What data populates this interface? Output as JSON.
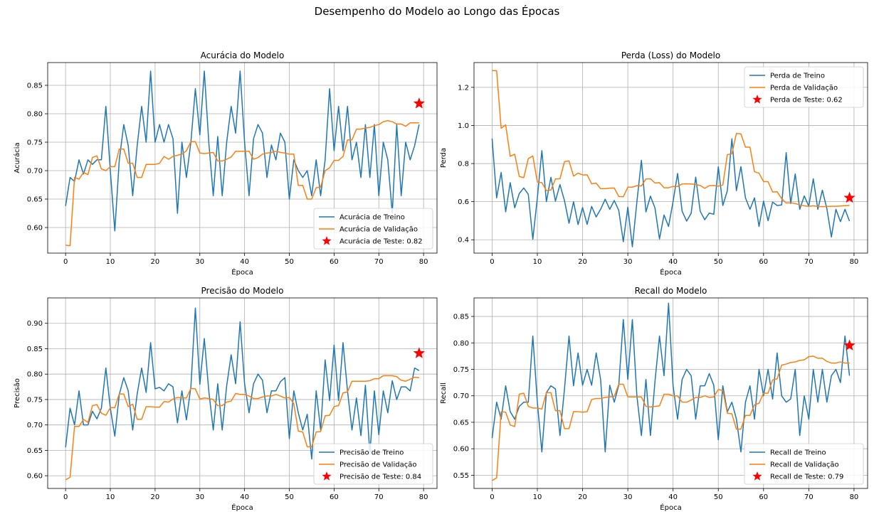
{
  "suptitle": "Desempenho do Modelo ao Longo das Épocas",
  "colors": {
    "train": "#1f77b4",
    "val": "#ff7f0e",
    "test": "#ff0000",
    "grid": "#b0b0b0"
  },
  "chart_data": [
    {
      "type": "line",
      "title": "Acurácia do Modelo",
      "xlabel": "Época",
      "ylabel": "Acurácia",
      "xlim": [
        -4,
        83
      ],
      "ylim": [
        0.555,
        0.89
      ],
      "xticks": [
        0,
        10,
        20,
        30,
        40,
        50,
        60,
        70,
        80
      ],
      "yticks": [
        0.6,
        0.65,
        0.7,
        0.75,
        0.8,
        0.85
      ],
      "tick_decimals": 2,
      "grid": true,
      "legend_position": "bottom-right",
      "series": [
        {
          "name": "Acurácia de Treino",
          "color": "#1f77b4",
          "values": [
            0.638,
            0.688,
            0.681,
            0.719,
            0.694,
            0.719,
            0.711,
            0.719,
            0.719,
            0.813,
            0.7,
            0.594,
            0.719,
            0.781,
            0.744,
            0.656,
            0.744,
            0.813,
            0.75,
            0.875,
            0.75,
            0.781,
            0.75,
            0.781,
            0.756,
            0.625,
            0.75,
            0.688,
            0.75,
            0.844,
            0.763,
            0.875,
            0.75,
            0.656,
            0.76,
            0.656,
            0.75,
            0.813,
            0.766,
            0.875,
            0.75,
            0.656,
            0.756,
            0.781,
            0.766,
            0.688,
            0.745,
            0.719,
            0.766,
            0.75,
            0.65,
            0.719,
            0.7,
            0.688,
            0.7,
            0.656,
            0.719,
            0.656,
            0.719,
            0.844,
            0.735,
            0.813,
            0.735,
            0.813,
            0.719,
            0.75,
            0.688,
            0.781,
            0.688,
            0.781,
            0.656,
            0.75,
            0.719,
            0.625,
            0.781,
            0.656,
            0.75,
            0.719,
            0.744,
            0.781
          ]
        },
        {
          "name": "Acurácia de Validação",
          "color": "#ff7f0e",
          "values": [
            0.569,
            0.568,
            0.688,
            0.685,
            0.697,
            0.693,
            0.723,
            0.726,
            0.703,
            0.7,
            0.707,
            0.707,
            0.738,
            0.738,
            0.713,
            0.713,
            0.688,
            0.688,
            0.711,
            0.711,
            0.711,
            0.713,
            0.725,
            0.72,
            0.725,
            0.727,
            0.729,
            0.735,
            0.751,
            0.751,
            0.731,
            0.73,
            0.731,
            0.732,
            0.717,
            0.717,
            0.72,
            0.724,
            0.734,
            0.734,
            0.734,
            0.734,
            0.72,
            0.723,
            0.729,
            0.731,
            0.732,
            0.734,
            0.732,
            0.731,
            0.729,
            0.729,
            0.674,
            0.674,
            0.65,
            0.65,
            0.67,
            0.671,
            0.7,
            0.705,
            0.718,
            0.718,
            0.725,
            0.754,
            0.754,
            0.773,
            0.773,
            0.775,
            0.776,
            0.779,
            0.781,
            0.786,
            0.788,
            0.786,
            0.782,
            0.782,
            0.778,
            0.784,
            0.784,
            0.784
          ]
        }
      ],
      "test": {
        "label": "Acurácia de Teste: 0.82",
        "x": 79,
        "y": 0.818
      }
    },
    {
      "type": "line",
      "title": "Perda (Loss) do Modelo",
      "xlabel": "Época",
      "ylabel": "Perda",
      "xlim": [
        -4,
        83
      ],
      "ylim": [
        0.33,
        1.33
      ],
      "xticks": [
        0,
        10,
        20,
        30,
        40,
        50,
        60,
        70,
        80
      ],
      "yticks": [
        0.4,
        0.6,
        0.8,
        1.0,
        1.2
      ],
      "tick_decimals": 1,
      "grid": true,
      "legend_position": "top-right",
      "series": [
        {
          "name": "Perda de Treino",
          "color": "#1f77b4",
          "values": [
            0.931,
            0.62,
            0.753,
            0.547,
            0.7,
            0.568,
            0.642,
            0.672,
            0.638,
            0.403,
            0.62,
            0.868,
            0.6,
            0.728,
            0.603,
            0.69,
            0.605,
            0.487,
            0.6,
            0.48,
            0.569,
            0.481,
            0.575,
            0.52,
            0.561,
            0.613,
            0.56,
            0.606,
            0.554,
            0.39,
            0.571,
            0.363,
            0.598,
            0.817,
            0.546,
            0.629,
            0.567,
            0.404,
            0.53,
            0.47,
            0.6,
            0.748,
            0.55,
            0.498,
            0.539,
            0.729,
            0.55,
            0.505,
            0.54,
            0.534,
            0.783,
            0.58,
            0.658,
            0.93,
            0.658,
            0.784,
            0.62,
            0.56,
            0.62,
            0.47,
            0.603,
            0.5,
            0.598,
            0.58,
            0.583,
            0.857,
            0.59,
            0.745,
            0.56,
            0.63,
            0.576,
            0.72,
            0.56,
            0.66,
            0.563,
            0.415,
            0.56,
            0.495,
            0.56,
            0.498
          ]
        },
        {
          "name": "Perda de Validação",
          "color": "#ff7f0e",
          "values": [
            1.288,
            1.287,
            0.985,
            1.003,
            0.838,
            0.849,
            0.732,
            0.726,
            0.826,
            0.84,
            0.703,
            0.7,
            0.658,
            0.661,
            0.719,
            0.72,
            0.81,
            0.814,
            0.734,
            0.75,
            0.74,
            0.741,
            0.694,
            0.697,
            0.668,
            0.668,
            0.671,
            0.672,
            0.627,
            0.626,
            0.676,
            0.676,
            0.684,
            0.682,
            0.719,
            0.72,
            0.698,
            0.7,
            0.673,
            0.673,
            0.68,
            0.68,
            0.693,
            0.694,
            0.693,
            0.69,
            0.685,
            0.67,
            0.684,
            0.685,
            0.681,
            0.688,
            0.847,
            0.851,
            0.958,
            0.956,
            0.886,
            0.886,
            0.757,
            0.75,
            0.705,
            0.705,
            0.651,
            0.652,
            0.616,
            0.593,
            0.594,
            0.59,
            0.583,
            0.578,
            0.576,
            0.578,
            0.575,
            0.574,
            0.575,
            0.576,
            0.576,
            0.577,
            0.579,
            0.58
          ]
        }
      ],
      "test": {
        "label": "Perda de Teste: 0.62",
        "x": 79,
        "y": 0.62
      }
    },
    {
      "type": "line",
      "title": "Precisão do Modelo",
      "xlabel": "Época",
      "ylabel": "Precisão",
      "xlim": [
        -4,
        83
      ],
      "ylim": [
        0.575,
        0.95
      ],
      "xticks": [
        0,
        10,
        20,
        30,
        40,
        50,
        60,
        70,
        80
      ],
      "yticks": [
        0.6,
        0.65,
        0.7,
        0.75,
        0.8,
        0.85,
        0.9
      ],
      "tick_decimals": 2,
      "grid": true,
      "legend_position": "bottom-right",
      "series": [
        {
          "name": "Precisão de Treino",
          "color": "#1f77b4",
          "values": [
            0.656,
            0.733,
            0.7,
            0.767,
            0.7,
            0.7,
            0.727,
            0.712,
            0.733,
            0.812,
            0.733,
            0.678,
            0.76,
            0.793,
            0.767,
            0.69,
            0.761,
            0.812,
            0.764,
            0.862,
            0.771,
            0.774,
            0.767,
            0.781,
            0.775,
            0.704,
            0.767,
            0.71,
            0.775,
            0.93,
            0.78,
            0.87,
            0.767,
            0.69,
            0.781,
            0.69,
            0.777,
            0.838,
            0.781,
            0.903,
            0.781,
            0.724,
            0.781,
            0.8,
            0.788,
            0.724,
            0.767,
            0.767,
            0.785,
            0.793,
            0.673,
            0.767,
            0.724,
            0.69,
            0.721,
            0.633,
            0.767,
            0.69,
            0.828,
            0.748,
            0.857,
            0.748,
            0.862,
            0.767,
            0.69,
            0.753,
            0.679,
            0.778,
            0.643,
            0.767,
            0.681,
            0.767,
            0.724,
            0.787,
            0.75,
            0.775,
            0.775,
            0.767,
            0.812,
            0.807
          ]
        },
        {
          "name": "Precisão de Validação",
          "color": "#ff7f0e",
          "values": [
            0.592,
            0.597,
            0.697,
            0.697,
            0.711,
            0.705,
            0.738,
            0.74,
            0.723,
            0.719,
            0.734,
            0.734,
            0.761,
            0.761,
            0.736,
            0.741,
            0.711,
            0.711,
            0.736,
            0.736,
            0.735,
            0.735,
            0.746,
            0.745,
            0.751,
            0.754,
            0.753,
            0.753,
            0.772,
            0.771,
            0.751,
            0.753,
            0.752,
            0.75,
            0.738,
            0.738,
            0.745,
            0.747,
            0.762,
            0.76,
            0.76,
            0.757,
            0.752,
            0.752,
            0.755,
            0.757,
            0.757,
            0.76,
            0.757,
            0.753,
            0.754,
            0.742,
            0.688,
            0.686,
            0.657,
            0.657,
            0.686,
            0.687,
            0.718,
            0.719,
            0.736,
            0.738,
            0.763,
            0.765,
            0.786,
            0.786,
            0.786,
            0.786,
            0.787,
            0.791,
            0.791,
            0.797,
            0.797,
            0.797,
            0.795,
            0.788,
            0.786,
            0.79,
            0.794,
            0.793
          ]
        }
      ],
      "test": {
        "label": "Precisão de Teste: 0.84",
        "x": 79,
        "y": 0.841
      }
    },
    {
      "type": "line",
      "title": "Recall do Modelo",
      "xlabel": "Época",
      "ylabel": "Recall",
      "xlim": [
        -4,
        83
      ],
      "ylim": [
        0.525,
        0.885
      ],
      "xticks": [
        0,
        10,
        20,
        30,
        40,
        50,
        60,
        70,
        80
      ],
      "yticks": [
        0.55,
        0.6,
        0.65,
        0.7,
        0.75,
        0.8,
        0.85
      ],
      "tick_decimals": 2,
      "grid": true,
      "legend_position": "bottom-right",
      "series": [
        {
          "name": "Recall de Treino",
          "color": "#1f77b4",
          "values": [
            0.62,
            0.688,
            0.656,
            0.719,
            0.67,
            0.656,
            0.68,
            0.688,
            0.688,
            0.813,
            0.688,
            0.594,
            0.706,
            0.719,
            0.713,
            0.625,
            0.713,
            0.813,
            0.719,
            0.781,
            0.72,
            0.75,
            0.72,
            0.781,
            0.73,
            0.594,
            0.72,
            0.688,
            0.72,
            0.844,
            0.731,
            0.844,
            0.7,
            0.625,
            0.731,
            0.625,
            0.727,
            0.813,
            0.738,
            0.875,
            0.719,
            0.656,
            0.731,
            0.75,
            0.738,
            0.656,
            0.719,
            0.719,
            0.742,
            0.72,
            0.617,
            0.719,
            0.67,
            0.688,
            0.656,
            0.594,
            0.688,
            0.719,
            0.656,
            0.75,
            0.7,
            0.75,
            0.694,
            0.781,
            0.7,
            0.688,
            0.694,
            0.75,
            0.625,
            0.7,
            0.656,
            0.75,
            0.688,
            0.75,
            0.688,
            0.738,
            0.75,
            0.725,
            0.813,
            0.738
          ]
        },
        {
          "name": "Recall de Validação",
          "color": "#ff7f0e",
          "values": [
            0.54,
            0.545,
            0.67,
            0.669,
            0.645,
            0.642,
            0.703,
            0.705,
            0.68,
            0.677,
            0.677,
            0.675,
            0.706,
            0.706,
            0.672,
            0.672,
            0.638,
            0.638,
            0.67,
            0.67,
            0.669,
            0.67,
            0.693,
            0.695,
            0.695,
            0.697,
            0.698,
            0.699,
            0.722,
            0.722,
            0.698,
            0.698,
            0.698,
            0.698,
            0.68,
            0.679,
            0.68,
            0.681,
            0.703,
            0.703,
            0.7,
            0.7,
            0.688,
            0.688,
            0.692,
            0.697,
            0.697,
            0.7,
            0.697,
            0.698,
            0.712,
            0.71,
            0.667,
            0.666,
            0.637,
            0.637,
            0.663,
            0.663,
            0.683,
            0.686,
            0.705,
            0.705,
            0.73,
            0.732,
            0.758,
            0.76,
            0.763,
            0.764,
            0.767,
            0.768,
            0.774,
            0.775,
            0.771,
            0.771,
            0.765,
            0.762,
            0.762,
            0.764,
            0.762,
            0.762
          ]
        }
      ],
      "test": {
        "label": "Recall de Teste: 0.79",
        "x": 79,
        "y": 0.795
      }
    }
  ]
}
